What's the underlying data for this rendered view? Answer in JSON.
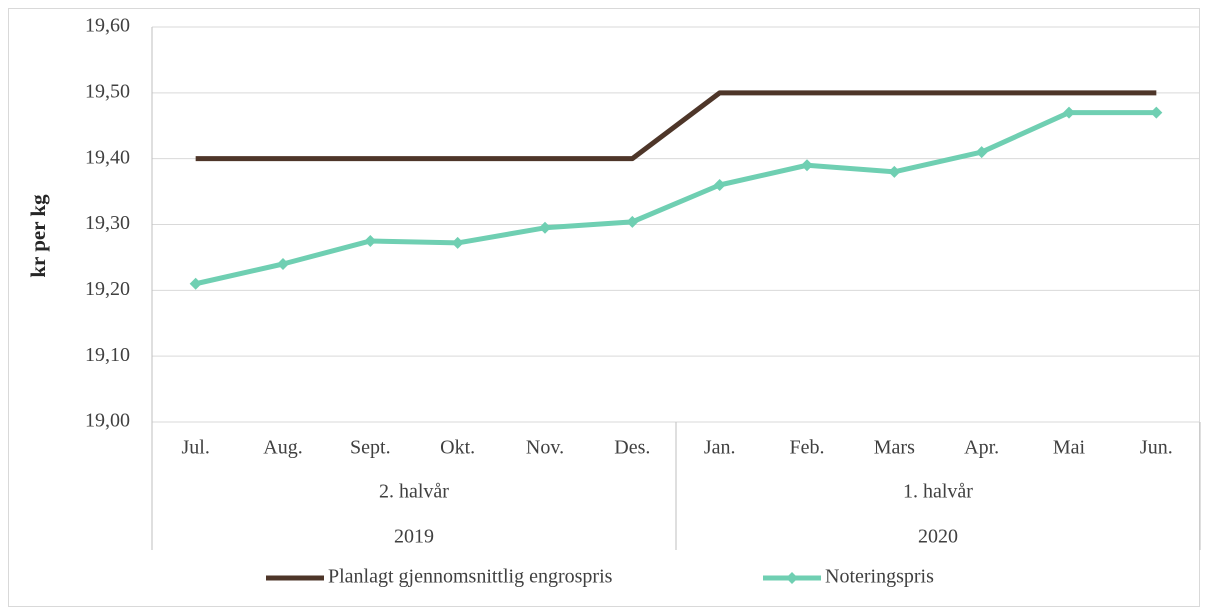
{
  "chart_data": {
    "type": "line",
    "y_label": "kr per kg",
    "categories": [
      "Jul.",
      "Aug.",
      "Sept.",
      "Okt.",
      "Nov.",
      "Des.",
      "Jan.",
      "Feb.",
      "Mars",
      "Apr.",
      "Mai",
      "Jun."
    ],
    "halves": [
      "2. halvår",
      "1. halvår"
    ],
    "years": [
      "2019",
      "2020"
    ],
    "series": [
      {
        "name": "Planlagt gjennomsnittlig engrospris",
        "color": "#4e3629",
        "marker": "none",
        "values": [
          19.4,
          19.4,
          19.4,
          19.4,
          19.4,
          19.4,
          19.5,
          19.5,
          19.5,
          19.5,
          19.5,
          19.5
        ]
      },
      {
        "name": "Noteringspris",
        "color": "#6fcfb2",
        "marker": "diamond",
        "values": [
          19.21,
          19.24,
          19.275,
          19.272,
          19.295,
          19.304,
          19.36,
          19.39,
          19.38,
          19.41,
          19.47,
          19.47
        ]
      }
    ],
    "ylim": [
      19.0,
      19.6
    ],
    "yticks": [
      {
        "value": 19.0,
        "label": "19,00"
      },
      {
        "value": 19.1,
        "label": "19,10"
      },
      {
        "value": 19.2,
        "label": "19,20"
      },
      {
        "value": 19.3,
        "label": "19,30"
      },
      {
        "value": 19.4,
        "label": "19,40"
      },
      {
        "value": 19.5,
        "label": "19,50"
      },
      {
        "value": 19.6,
        "label": "19,60"
      }
    ],
    "grid": true,
    "legend": "bottom"
  }
}
